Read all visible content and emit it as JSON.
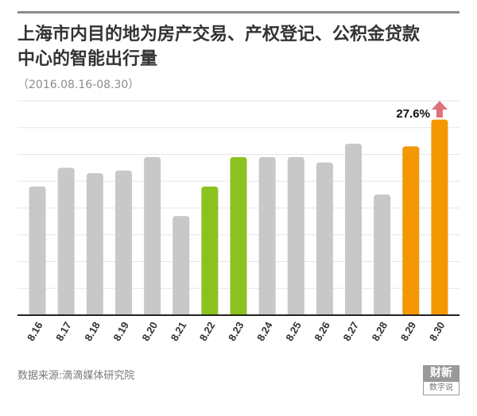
{
  "title": "上海市内目的地为房产交易、产权登记、公积金贷款中心的智能出行量",
  "subtitle": "（2016.08.16-08.30）",
  "source": "数据来源:滴滴媒体研究院",
  "logo": {
    "line1": "财新",
    "line2": "数字说"
  },
  "colors": {
    "default": "#c8c8c8",
    "green": "#8cc21f",
    "orange": "#f39800",
    "arrow": "#e0707c",
    "grid": "#e6e6e6",
    "baseline": "#222222"
  },
  "chart_data": {
    "type": "bar",
    "title": "上海市内目的地为房产交易、产权登记、公积金贷款中心的智能出行量",
    "categories": [
      "8.16",
      "8.17",
      "8.18",
      "8.19",
      "8.20",
      "8.21",
      "8.22",
      "8.23",
      "8.24",
      "8.25",
      "8.26",
      "8.27",
      "8.28",
      "8.29",
      "8.30"
    ],
    "values": [
      48,
      55,
      53,
      54,
      59,
      37,
      48,
      59,
      59,
      59,
      57,
      64,
      45,
      63,
      73
    ],
    "highlight": {
      "green": [
        "8.22",
        "8.23"
      ],
      "orange": [
        "8.29",
        "8.30"
      ]
    },
    "ylim": [
      0,
      80
    ],
    "gridlines": 8,
    "grid": true,
    "y_tick_labels_shown": false,
    "annotation": {
      "text": "27.6%",
      "target": "8.30",
      "icon": "up-arrow-icon"
    }
  }
}
